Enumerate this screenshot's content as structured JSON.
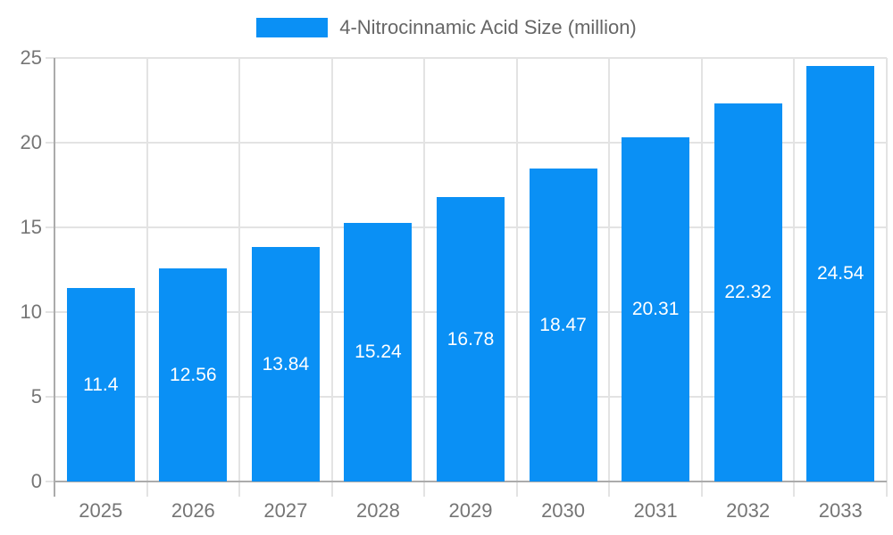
{
  "chart_data": {
    "type": "bar",
    "title": "4-Nitrocinnamic Acid Size (million)",
    "legend": [
      "4-Nitrocinnamic Acid Size (million)"
    ],
    "legend_position": "top",
    "categories": [
      "2025",
      "2026",
      "2027",
      "2028",
      "2029",
      "2030",
      "2031",
      "2032",
      "2033"
    ],
    "values": [
      11.4,
      12.56,
      13.84,
      15.24,
      16.78,
      18.47,
      20.31,
      22.32,
      24.54
    ],
    "value_labels": [
      "11.4",
      "12.56",
      "13.84",
      "15.24",
      "16.78",
      "18.47",
      "20.31",
      "22.32",
      "24.54"
    ],
    "xlabel": "",
    "ylabel": "",
    "ylim": [
      0,
      25
    ],
    "yticks": [
      0,
      5,
      10,
      15,
      20,
      25
    ],
    "grid": true,
    "colors": {
      "bar": "#0a90f5",
      "grid": "#e3e3e3",
      "axis": "#ababab",
      "axis_text": "#757575",
      "legend_text": "#666666",
      "value_text": "#ffffff",
      "background": "#ffffff"
    }
  }
}
